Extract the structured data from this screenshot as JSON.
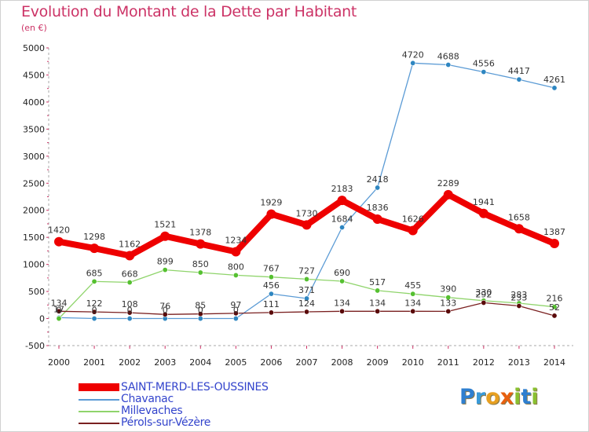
{
  "title": "Evolution du Montant de la Dette par Habitant",
  "unit_label": "(en €)",
  "logo": {
    "text": "Proxiti",
    "letters": [
      {
        "ch": "P",
        "color": "#2e7fd0"
      },
      {
        "ch": "r",
        "color": "#3a9ad8"
      },
      {
        "ch": "o",
        "color": "#e8a020"
      },
      {
        "ch": "x",
        "color": "#e86010"
      },
      {
        "ch": "i",
        "color": "#8ac030"
      },
      {
        "ch": "t",
        "color": "#2e7fd0"
      },
      {
        "ch": "i",
        "color": "#8ac030"
      }
    ]
  },
  "chart_data": {
    "type": "line",
    "title": "Evolution du Montant de la Dette par Habitant",
    "ylabel": "(en €)",
    "xlabel": "",
    "ylim": [
      -500,
      5000
    ],
    "yticks": [
      -500,
      0,
      500,
      1000,
      1500,
      2000,
      2500,
      3000,
      3500,
      4000,
      4500,
      5000
    ],
    "grid": false,
    "legend_position": "bottom-left",
    "categories": [
      "2000",
      "2001",
      "2002",
      "2003",
      "2004",
      "2005",
      "2006",
      "2007",
      "2008",
      "2009",
      "2010",
      "2011",
      "2012",
      "2013",
      "2014"
    ],
    "series": [
      {
        "name": "SAINT-MERD-LES-OUSSINES",
        "color": "#ee0000",
        "emphasis": true,
        "values": [
          1420,
          1298,
          1162,
          1521,
          1378,
          1234,
          1929,
          1730,
          2183,
          1836,
          1626,
          2289,
          1941,
          1658,
          1387
        ],
        "labels": [
          "1420",
          "1298",
          "1162",
          "1521",
          "1378",
          "1234",
          "1929",
          "1730",
          "2183",
          "1836",
          "1626",
          "2289",
          "1941",
          "1658",
          "1387"
        ]
      },
      {
        "name": "Chavanac",
        "color": "#5b9bd5",
        "marker_color": "#2e86c1",
        "values": [
          17,
          0,
          0,
          0,
          0,
          0,
          456,
          371,
          1684,
          2418,
          4720,
          4688,
          4556,
          4417,
          4261
        ],
        "labels": [
          "17",
          "0",
          "0",
          "0",
          "0",
          "0",
          "456",
          "371",
          "1684",
          "2418",
          "4720",
          "4688",
          "4556",
          "4417",
          "4261"
        ]
      },
      {
        "name": "Millevaches",
        "color": "#8fd46b",
        "marker_color": "#55c030",
        "values": [
          0,
          685,
          668,
          899,
          850,
          800,
          767,
          727,
          690,
          517,
          455,
          390,
          330,
          283,
          216
        ],
        "labels": [
          "0",
          "685",
          "668",
          "899",
          "850",
          "800",
          "767",
          "727",
          "690",
          "517",
          "455",
          "390",
          "330",
          "283",
          "216"
        ]
      },
      {
        "name": "Pérols-sur-Vézère",
        "color": "#7a2020",
        "marker_color": "#5a0a0a",
        "values": [
          134,
          122,
          108,
          76,
          85,
          97,
          111,
          124,
          134,
          134,
          134,
          133,
          292,
          233,
          52
        ],
        "labels": [
          "134",
          "122",
          "108",
          "76",
          "85",
          "97",
          "111",
          "124",
          "134",
          "134",
          "134",
          "133",
          "292",
          "233",
          "52"
        ]
      }
    ]
  }
}
